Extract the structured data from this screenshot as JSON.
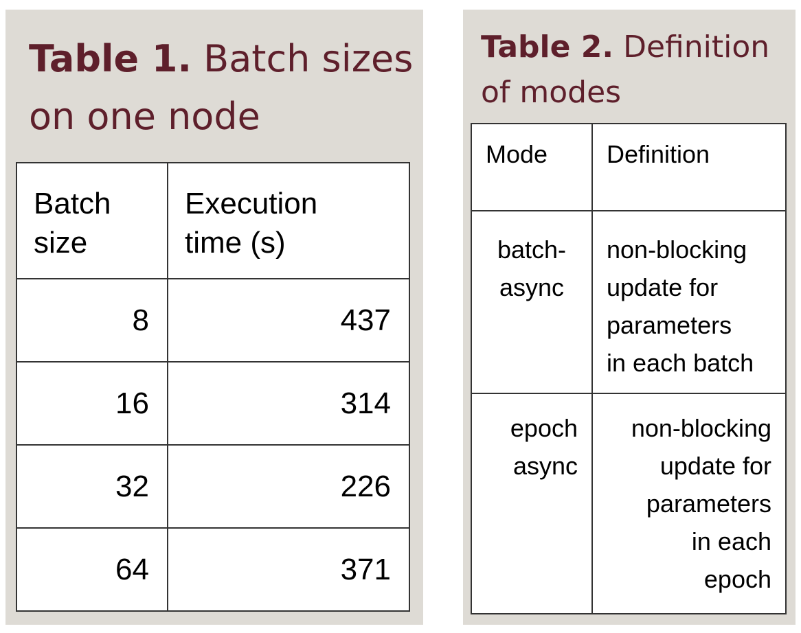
{
  "table1": {
    "caption_label": "Table 1.",
    "caption_text": " Batch sizes on one node",
    "header": [
      "Batch\nsize",
      "Execution\ntime (s)"
    ],
    "rows": [
      [
        "8",
        "437"
      ],
      [
        "16",
        "314"
      ],
      [
        "32",
        "226"
      ],
      [
        "64",
        "371"
      ]
    ]
  },
  "table2": {
    "caption_label": "Table 2.",
    "caption_text": " Definition of modes",
    "header": [
      "Mode",
      "Definition"
    ],
    "rows": [
      [
        "batch-\nasync",
        "non-blocking\nupdate for\nparameters\nin each batch"
      ],
      [
        "epoch\nasync",
        "non-blocking\nupdate for\nparameters\nin each\nepoch"
      ]
    ]
  }
}
